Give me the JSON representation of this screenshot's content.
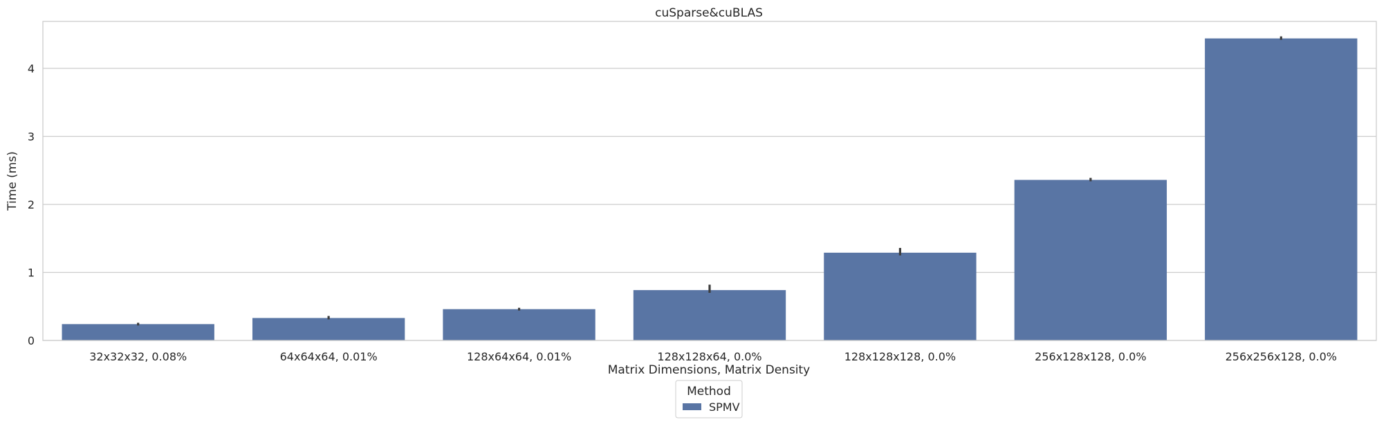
{
  "chart_data": {
    "type": "bar",
    "title": "cuSparse&cuBLAS",
    "xlabel": "Matrix Dimensions, Matrix Density",
    "ylabel": "Time (ms)",
    "categories": [
      "32x32x32, 0.08%",
      "64x64x64, 0.01%",
      "128x64x64, 0.01%",
      "128x128x64, 0.0%",
      "128x128x128, 0.0%",
      "256x128x128, 0.0%",
      "256x256x128, 0.0%"
    ],
    "series": [
      {
        "name": "SPMV",
        "values": [
          0.24,
          0.33,
          0.46,
          0.74,
          1.29,
          2.36,
          4.44
        ],
        "error_low": [
          0.22,
          0.31,
          0.44,
          0.7,
          1.25,
          2.34,
          4.42
        ],
        "error_high": [
          0.26,
          0.36,
          0.48,
          0.82,
          1.36,
          2.39,
          4.47
        ],
        "color": "#5975a4"
      }
    ],
    "yticks": [
      0,
      1,
      2,
      3,
      4
    ],
    "ylim": [
      0,
      4.69
    ],
    "grid": true,
    "legend": {
      "title": "Method",
      "placement": "bottom-center"
    }
  }
}
